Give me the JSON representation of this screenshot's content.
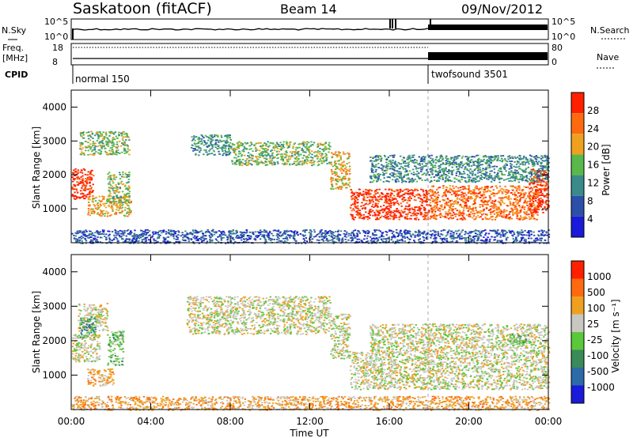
{
  "header": {
    "station": "Saskatoon (fitACF)",
    "beam": "Beam 14",
    "date": "09/Nov/2012"
  },
  "noise_panel": {
    "left_label": "N.Sky",
    "right_label": "N.Search",
    "left_ticks": [
      "10^5",
      "10^0"
    ],
    "right_ticks": [
      "10^5",
      "10^0"
    ]
  },
  "freq_panel": {
    "left_label_1": "Freq.",
    "left_label_2": "[MHz]",
    "left_ticks": [
      "18",
      "8"
    ],
    "right_label": "Nave",
    "right_ticks": [
      "80",
      "0"
    ]
  },
  "cpid": {
    "label": "CPID",
    "modes": [
      {
        "name": "normal 150",
        "start_hour": 0
      },
      {
        "name": "twofsound 3501",
        "start_hour": 18
      }
    ]
  },
  "x_axis": {
    "label": "Time UT",
    "range_hours": [
      0,
      24
    ],
    "ticks": [
      "00:00",
      "04:00",
      "08:00",
      "12:00",
      "16:00",
      "20:00",
      "00:00"
    ]
  },
  "chart_data": [
    {
      "type": "heatmap",
      "panel": "power",
      "xlabel": "Time UT",
      "ylabel": "Slant Range [km]",
      "xlim_hours": [
        0,
        24
      ],
      "ylim_km": [
        0,
        4500
      ],
      "y_ticks": [
        1000,
        2000,
        3000,
        4000
      ],
      "colorbar": {
        "label": "Power [dB]",
        "ticks": [
          "4",
          "8",
          "12",
          "16",
          "20",
          "24",
          "28"
        ],
        "colors": [
          "#1a1ad8",
          "#2c4fa8",
          "#3a8a8a",
          "#5ab84a",
          "#f0a020",
          "#ff6a10",
          "#ff2000"
        ]
      },
      "regions": [
        {
          "t": [
            0,
            1.1
          ],
          "r": [
            1300,
            2200
          ],
          "level": 6
        },
        {
          "t": [
            0.4,
            2.9
          ],
          "r": [
            2600,
            3300
          ],
          "level": 3
        },
        {
          "t": [
            0.8,
            3.0
          ],
          "r": [
            800,
            1400
          ],
          "level": 4
        },
        {
          "t": [
            1.8,
            2.9
          ],
          "r": [
            1200,
            2100
          ],
          "level": 3
        },
        {
          "t": [
            6.0,
            8.0
          ],
          "r": [
            2600,
            3200
          ],
          "level": 2
        },
        {
          "t": [
            8.0,
            9.5
          ],
          "r": [
            2300,
            3000
          ],
          "level": 3
        },
        {
          "t": [
            9.5,
            13.0
          ],
          "r": [
            2300,
            3000
          ],
          "level": 3
        },
        {
          "t": [
            13.0,
            14.0
          ],
          "r": [
            1600,
            2700
          ],
          "level": 4
        },
        {
          "t": [
            14.0,
            18.0
          ],
          "r": [
            700,
            1600
          ],
          "level": 6
        },
        {
          "t": [
            18.0,
            23.5
          ],
          "r": [
            700,
            1700
          ],
          "level": 5
        },
        {
          "t": [
            23.0,
            24.0
          ],
          "r": [
            900,
            2200
          ],
          "level": 6
        },
        {
          "t": [
            15.0,
            24.0
          ],
          "r": [
            1800,
            2600
          ],
          "level": 2
        },
        {
          "t": [
            0,
            24
          ],
          "r": [
            0,
            400
          ],
          "level": 1
        }
      ]
    },
    {
      "type": "heatmap",
      "panel": "velocity",
      "xlabel": "Time UT",
      "ylabel": "Slant Range [km]",
      "xlim_hours": [
        0,
        24
      ],
      "ylim_km": [
        0,
        4500
      ],
      "y_ticks": [
        1000,
        2000,
        3000,
        4000
      ],
      "colorbar": {
        "label": "Velocity [m s⁻¹]",
        "ticks": [
          "1000",
          "500",
          "100",
          "25",
          "-25",
          "-100",
          "-500",
          "-1000"
        ],
        "colors": [
          "#1a1ad8",
          "#2c6aa8",
          "#3a8a5a",
          "#5ac83a",
          "#c8c8c0",
          "#f0a020",
          "#ff6a10",
          "#ff2000"
        ]
      },
      "regions": [
        {
          "t": [
            0.3,
            1.8
          ],
          "r": [
            2300,
            3100
          ],
          "level": 4
        },
        {
          "t": [
            0.4,
            1.2
          ],
          "r": [
            2100,
            2700
          ],
          "level": 2
        },
        {
          "t": [
            0,
            1.4
          ],
          "r": [
            1400,
            2200
          ],
          "level": 4
        },
        {
          "t": [
            1.8,
            2.6
          ],
          "r": [
            1300,
            2300
          ],
          "level": 3
        },
        {
          "t": [
            0.8,
            2.1
          ],
          "r": [
            700,
            1200
          ],
          "level": 5
        },
        {
          "t": [
            5.8,
            13.0
          ],
          "r": [
            2200,
            3300
          ],
          "level": 4
        },
        {
          "t": [
            13.0,
            14.0
          ],
          "r": [
            1500,
            2800
          ],
          "level": 4
        },
        {
          "t": [
            14.0,
            24.0
          ],
          "r": [
            600,
            1700
          ],
          "level": 4
        },
        {
          "t": [
            15.0,
            24.0
          ],
          "r": [
            1700,
            2500
          ],
          "level": 4
        },
        {
          "t": [
            22.0,
            23.0
          ],
          "r": [
            1900,
            2200
          ],
          "level": 3
        },
        {
          "t": [
            0,
            24
          ],
          "r": [
            0,
            400
          ],
          "level": 5
        }
      ]
    }
  ]
}
